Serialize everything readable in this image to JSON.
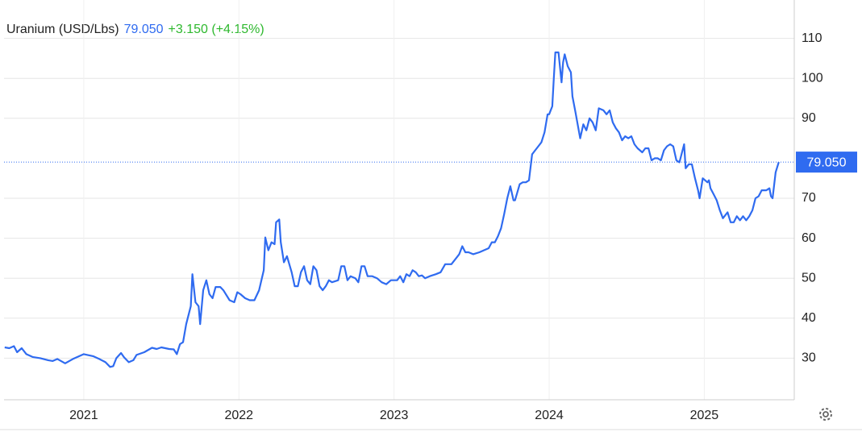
{
  "chart_data": {
    "type": "line",
    "title": "Uranium (USD/Lbs)",
    "price_label": "79.050",
    "change_label": "+3.150 (+4.15%)",
    "color": "#2f6bf0",
    "price_color": "#2f6bf0",
    "change_color": "#2eb82e",
    "grid": true,
    "xlim": [
      2020.46,
      2025.58
    ],
    "xticks": [
      2021,
      2022,
      2023,
      2024,
      2025
    ],
    "ylim": [
      20,
      120
    ],
    "yticks": [
      30,
      40,
      50,
      60,
      70,
      90,
      100,
      110
    ],
    "x": [
      2020.49,
      2020.52,
      2020.55,
      2020.57,
      2020.6,
      2020.63,
      2020.67,
      2020.72,
      2020.77,
      2020.8,
      2020.83,
      2020.88,
      2020.93,
      2021.0,
      2021.06,
      2021.1,
      2021.14,
      2021.17,
      2021.19,
      2021.21,
      2021.24,
      2021.26,
      2021.29,
      2021.32,
      2021.34,
      2021.39,
      2021.44,
      2021.47,
      2021.5,
      2021.55,
      2021.58,
      2021.6,
      2021.62,
      2021.64,
      2021.66,
      2021.69,
      2021.7,
      2021.72,
      2021.74,
      2021.75,
      2021.77,
      2021.79,
      2021.81,
      2021.83,
      2021.85,
      2021.88,
      2021.9,
      2021.94,
      2021.97,
      2021.99,
      2022.01,
      2022.04,
      2022.07,
      2022.1,
      2022.13,
      2022.16,
      2022.17,
      2022.19,
      2022.21,
      2022.23,
      2022.24,
      2022.26,
      2022.27,
      2022.29,
      2022.31,
      2022.34,
      2022.36,
      2022.38,
      2022.4,
      2022.42,
      2022.44,
      2022.46,
      2022.48,
      2022.5,
      2022.52,
      2022.54,
      2022.56,
      2022.58,
      2022.6,
      2022.64,
      2022.66,
      2022.68,
      2022.7,
      2022.72,
      2022.75,
      2022.77,
      2022.79,
      2022.81,
      2022.83,
      2022.86,
      2022.89,
      2022.92,
      2022.95,
      2022.98,
      2023.02,
      2023.04,
      2023.06,
      2023.08,
      2023.1,
      2023.12,
      2023.14,
      2023.16,
      2023.18,
      2023.2,
      2023.23,
      2023.27,
      2023.3,
      2023.33,
      2023.37,
      2023.4,
      2023.42,
      2023.44,
      2023.46,
      2023.48,
      2023.51,
      2023.55,
      2023.58,
      2023.61,
      2023.63,
      2023.65,
      2023.67,
      2023.69,
      2023.71,
      2023.73,
      2023.75,
      2023.77,
      2023.78,
      2023.81,
      2023.83,
      2023.85,
      2023.87,
      2023.89,
      2023.91,
      2023.93,
      2023.95,
      2023.97,
      2023.99,
      2024.0,
      2024.02,
      2024.03,
      2024.04,
      2024.06,
      2024.08,
      2024.09,
      2024.1,
      2024.12,
      2024.14,
      2024.15,
      2024.17,
      2024.2,
      2024.22,
      2024.24,
      2024.26,
      2024.28,
      2024.3,
      2024.32,
      2024.35,
      2024.37,
      2024.39,
      2024.41,
      2024.43,
      2024.45,
      2024.47,
      2024.49,
      2024.51,
      2024.53,
      2024.55,
      2024.57,
      2024.6,
      2024.62,
      2024.64,
      2024.66,
      2024.68,
      2024.7,
      2024.72,
      2024.74,
      2024.76,
      2024.78,
      2024.8,
      2024.82,
      2024.84,
      2024.87,
      2024.88,
      2024.9,
      2024.92,
      2024.94,
      2024.96,
      2024.97,
      2024.99,
      2025.02,
      2025.03,
      2025.04,
      2025.06,
      2025.08,
      2025.1,
      2025.12,
      2025.15,
      2025.17,
      2025.19,
      2025.21,
      2025.23,
      2025.25,
      2025.27,
      2025.29,
      2025.31,
      2025.33,
      2025.35,
      2025.37,
      2025.4,
      2025.42,
      2025.43,
      2025.44,
      2025.46,
      2025.48
    ],
    "values": [
      32.7,
      32.5,
      33,
      31.5,
      32.5,
      31,
      30.3,
      30,
      29.5,
      29.3,
      29.8,
      28.7,
      29.8,
      31,
      30.5,
      29.8,
      29,
      27.8,
      28,
      30,
      31.3,
      30.2,
      29,
      29.5,
      30.8,
      31.5,
      32.6,
      32.3,
      32.7,
      32.3,
      32.2,
      31,
      33.5,
      34,
      38.5,
      43,
      51,
      44,
      43,
      38.5,
      47,
      49.5,
      46,
      45,
      47.8,
      47.8,
      47,
      44.5,
      44,
      46.5,
      46,
      45,
      44.5,
      44.5,
      47,
      52,
      60.2,
      57,
      59,
      58.5,
      64,
      64.7,
      59,
      54,
      55.5,
      51.5,
      48,
      48,
      51.5,
      53,
      49.5,
      48.5,
      53,
      52,
      48,
      47,
      48,
      49.5,
      49,
      49.5,
      53,
      53,
      49.5,
      50.5,
      50,
      49,
      53,
      53,
      50.5,
      50.5,
      50,
      49,
      48.5,
      49.5,
      49.5,
      50.5,
      49,
      51,
      50.5,
      52,
      51.5,
      50.5,
      50.7,
      50,
      50.5,
      51,
      51.5,
      53.5,
      53.5,
      55,
      56,
      58,
      56.5,
      56.5,
      56,
      56.5,
      57,
      57.5,
      59,
      59,
      60.5,
      62.5,
      66,
      70,
      73,
      69.5,
      69.5,
      73.5,
      74,
      74,
      74.5,
      81,
      82,
      83,
      84,
      86.5,
      91,
      91,
      93,
      100,
      106.5,
      106.5,
      99,
      104,
      106,
      103,
      101.5,
      95.5,
      91.5,
      85,
      88.5,
      87,
      90,
      89,
      87,
      92.5,
      92,
      91,
      92,
      89,
      87.5,
      86.5,
      84.5,
      85.5,
      85,
      85.5,
      83.5,
      82.5,
      81.5,
      82.5,
      82.5,
      79.5,
      80,
      80,
      79.5,
      82,
      83,
      83.5,
      83,
      79.5,
      79,
      83.5,
      77.5,
      78.5,
      78.5,
      75,
      72,
      70,
      75,
      74,
      74.5,
      72.5,
      71,
      69.5,
      67,
      65,
      66.5,
      64,
      64,
      65.5,
      64.5,
      65.5,
      64.5,
      65.5,
      67,
      70,
      70.5,
      72,
      72,
      72.5,
      70.5,
      70,
      76.5,
      79.05
    ]
  }
}
